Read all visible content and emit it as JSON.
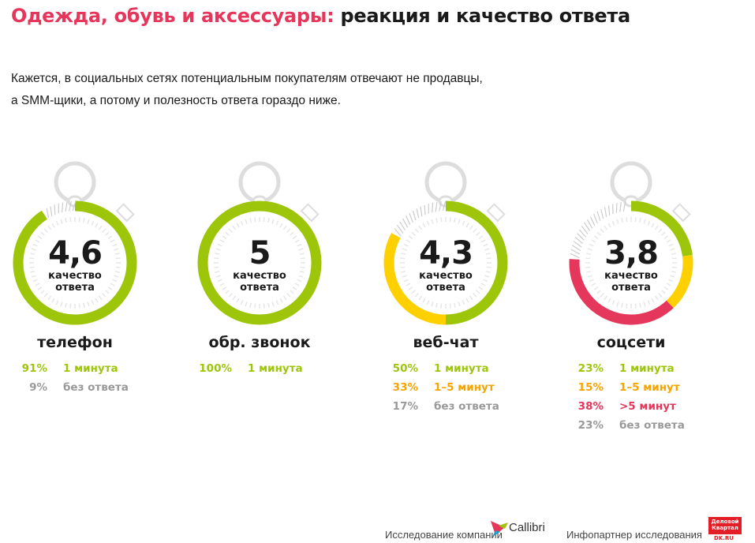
{
  "header": {
    "title_accent": "Одежда, обувь и аксессуары:",
    "title_rest": " реакция и качество ответа"
  },
  "subtitle": {
    "line1": "Кажется, в социальных сетях потенциальным покупателям отвечают не продавцы,",
    "line2": "а SMM-щики, а потому и полезность ответа гораздо ниже."
  },
  "colors": {
    "accent": "#e5365b",
    "fast": "#9dc60a",
    "medium_ring": "#ffd000",
    "medium_text": "#f7a400",
    "slow": "#e5365b",
    "none": "#999999"
  },
  "quality_label_1": "качество",
  "quality_label_2": "ответа",
  "dials": [
    {
      "channel": "телефон",
      "score": "4,6",
      "segments": [
        {
          "pct": 91,
          "kind": "fast"
        },
        {
          "pct": 9,
          "kind": "none"
        }
      ],
      "stats": [
        {
          "pct": "91%",
          "label": "1 минута",
          "kind": "fast"
        },
        {
          "pct": "9%",
          "label": "без ответа",
          "kind": "none"
        }
      ]
    },
    {
      "channel": "обр. звонок",
      "score": "5",
      "segments": [
        {
          "pct": 100,
          "kind": "fast"
        }
      ],
      "stats": [
        {
          "pct": "100%",
          "label": "1 минута",
          "kind": "fast"
        }
      ]
    },
    {
      "channel": "веб-чат",
      "score": "4,3",
      "segments": [
        {
          "pct": 50,
          "kind": "fast"
        },
        {
          "pct": 33,
          "kind": "medium"
        },
        {
          "pct": 17,
          "kind": "none"
        }
      ],
      "stats": [
        {
          "pct": "50%",
          "label": "1 минута",
          "kind": "fast"
        },
        {
          "pct": "33%",
          "label": "1–5 минут",
          "kind": "medium"
        },
        {
          "pct": "17%",
          "label": "без ответа",
          "kind": "none"
        }
      ]
    },
    {
      "channel": "соцсети",
      "score": "3,8",
      "segments": [
        {
          "pct": 23,
          "kind": "fast"
        },
        {
          "pct": 15,
          "kind": "medium"
        },
        {
          "pct": 38,
          "kind": "slow"
        },
        {
          "pct": 23,
          "kind": "none"
        }
      ],
      "stats": [
        {
          "pct": "23%",
          "label": "1 минута",
          "kind": "fast"
        },
        {
          "pct": "15%",
          "label": "1–5 минут",
          "kind": "medium"
        },
        {
          "pct": "38%",
          "label": ">5 минут",
          "kind": "slow"
        },
        {
          "pct": "23%",
          "label": "без ответа",
          "kind": "none"
        }
      ]
    }
  ],
  "footer": {
    "research_by": "Исследование компании",
    "company": "Callibri",
    "partner_label": "Инфопартнер исследования",
    "partner_logo": "Деловой Квартал",
    "partner_site": "DK.RU"
  }
}
